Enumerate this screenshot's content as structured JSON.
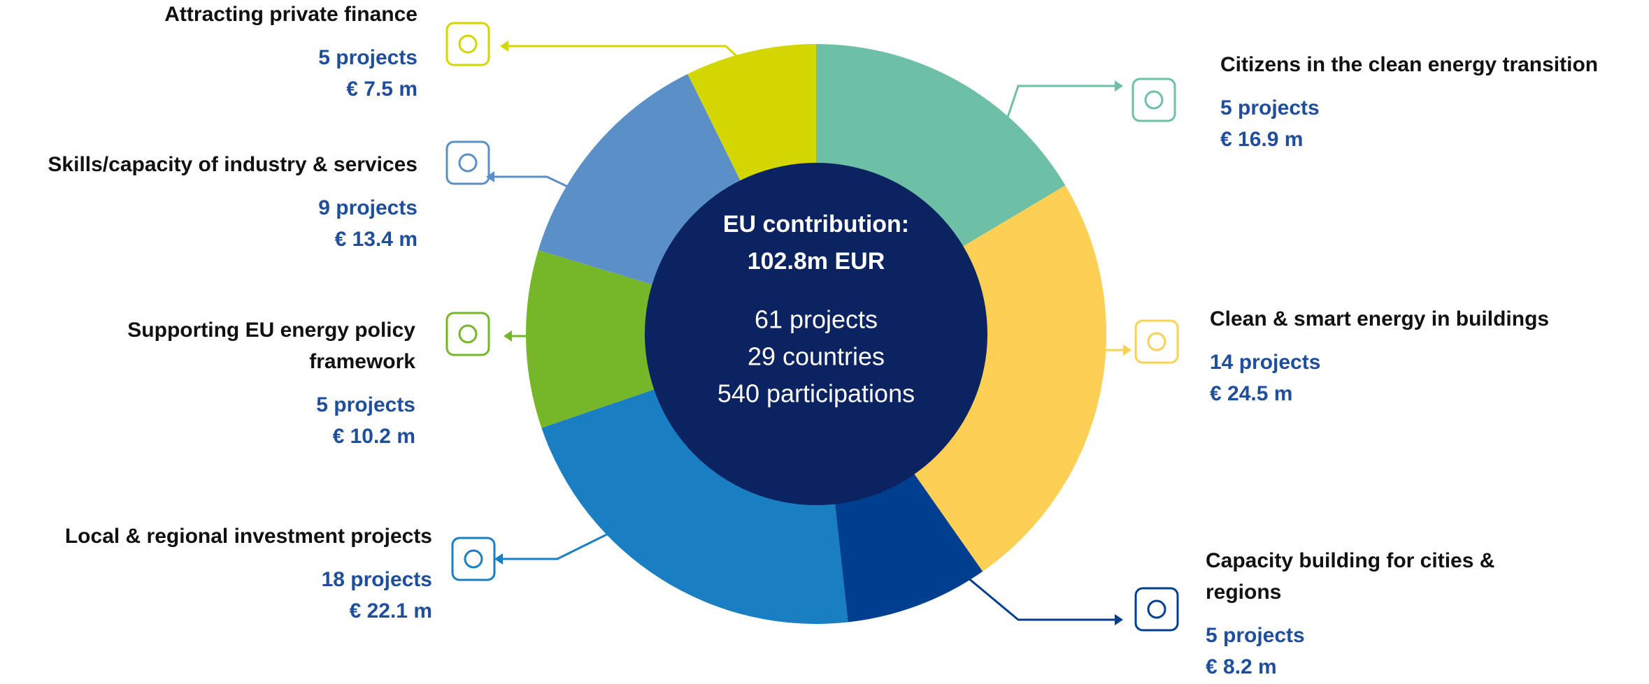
{
  "chart_data": {
    "type": "donut",
    "categories": [
      "Citizens in the clean energy transition",
      "Clean & smart energy in buildings",
      "Capacity building for cities &\nregions",
      "Local & regional investment projects",
      "Supporting EU energy policy\nframework",
      "Skills/capacity of industry & services",
      "Attracting private finance"
    ],
    "values": [
      16.9,
      24.5,
      8.2,
      22.1,
      10.2,
      13.4,
      7.5
    ],
    "value_labels": [
      "€ 16.9 m",
      "€ 24.5 m",
      "€ 8.2 m",
      "€ 22.1 m",
      "€ 10.2 m",
      "€ 13.4 m",
      "€ 7.5 m"
    ],
    "project_labels": [
      "5 projects",
      "14 projects",
      "5 projects",
      "18 projects",
      "5 projects",
      "9 projects",
      "5 projects"
    ],
    "colors": [
      "#6dbfa5",
      "#fdd055",
      "#003f8f",
      "#1a7ec2",
      "#76b72a",
      "#5b8fc8",
      "#d4d600"
    ],
    "center_text": [
      "EU contribution:",
      "102.8m EUR",
      "61 projects",
      "29 countries",
      "540 participations"
    ]
  }
}
